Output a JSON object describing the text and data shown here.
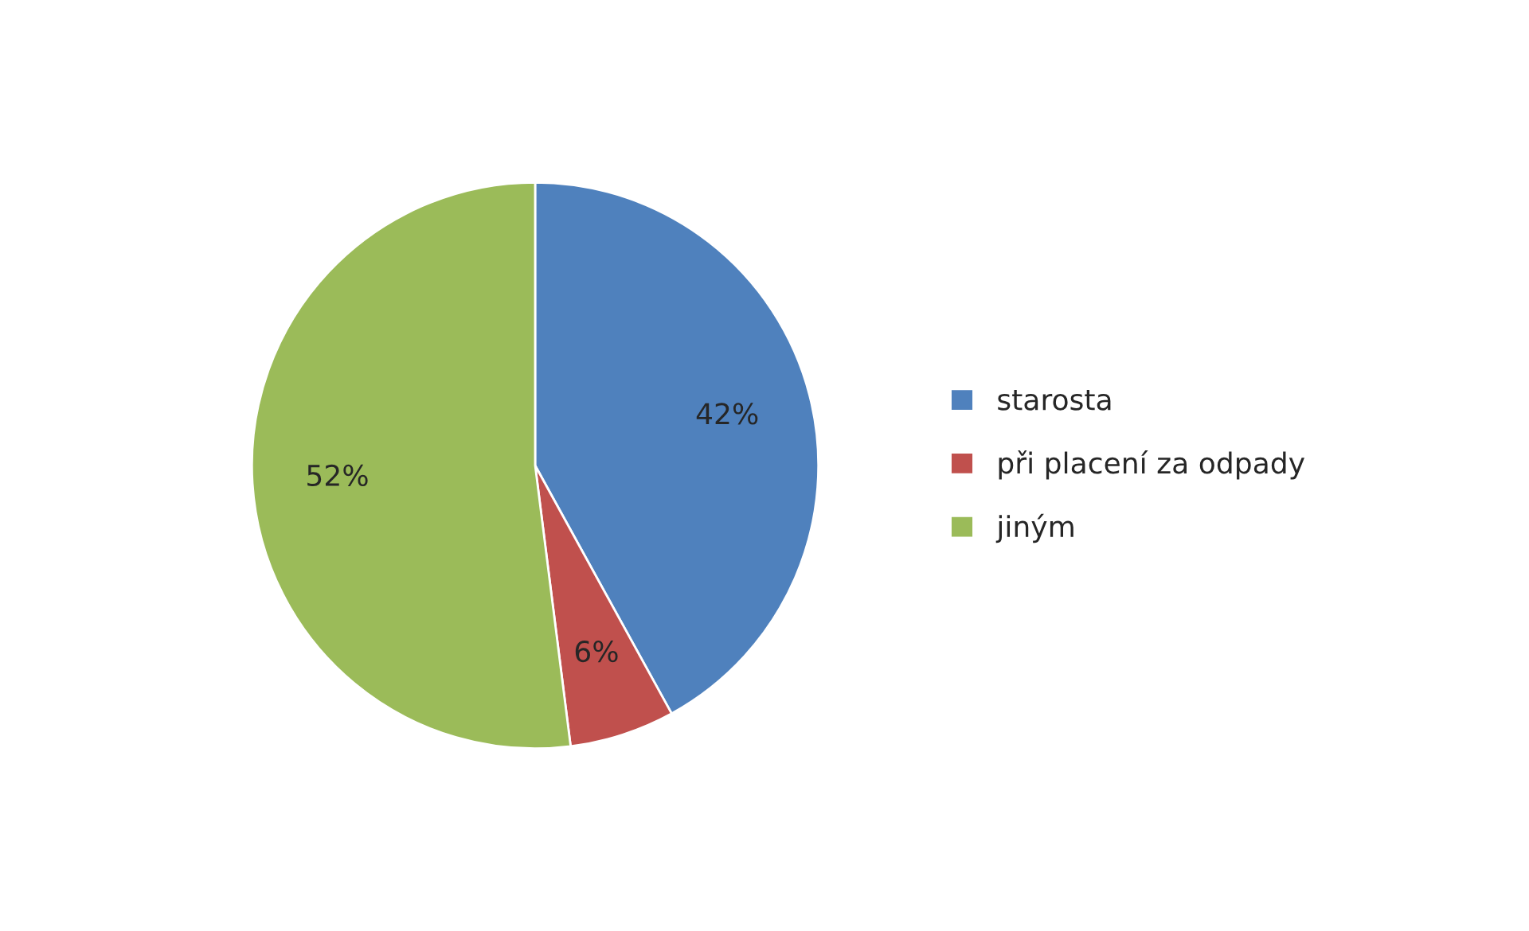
{
  "chart_data": {
    "type": "pie",
    "categories": [
      "starosta",
      "při placení za odpady",
      "jiným"
    ],
    "values": [
      42,
      6,
      52
    ],
    "colors": [
      "#4f81bd",
      "#c0504d",
      "#9bbb59"
    ],
    "value_labels": [
      "42%",
      "6%",
      "52%"
    ],
    "legend": "right"
  }
}
